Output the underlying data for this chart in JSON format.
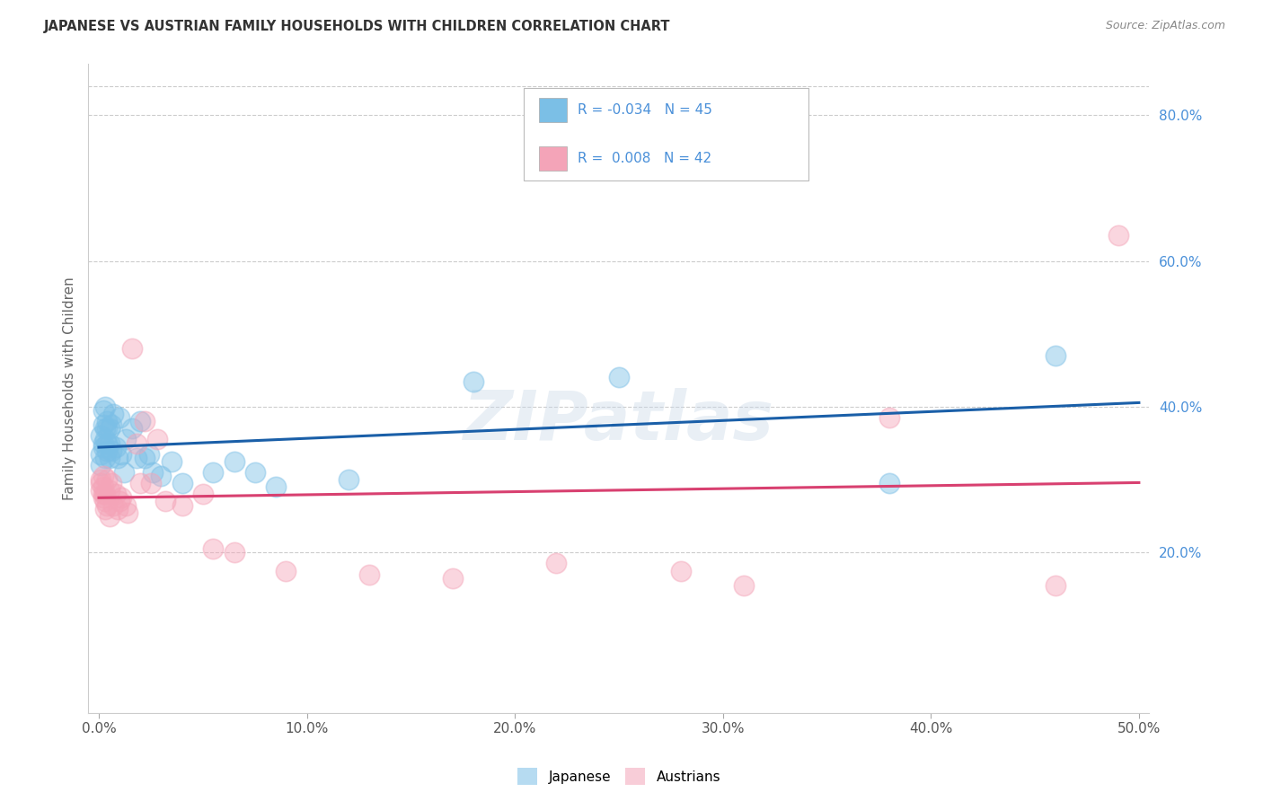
{
  "title": "JAPANESE VS AUSTRIAN FAMILY HOUSEHOLDS WITH CHILDREN CORRELATION CHART",
  "source": "Source: ZipAtlas.com",
  "ylabel": "Family Households with Children",
  "xlim": [
    -0.005,
    0.505
  ],
  "ylim": [
    -0.02,
    0.87
  ],
  "xticks": [
    0.0,
    0.1,
    0.2,
    0.3,
    0.4,
    0.5
  ],
  "yticks": [
    0.2,
    0.4,
    0.6,
    0.8
  ],
  "xtick_labels": [
    "0.0%",
    "10.0%",
    "20.0%",
    "30.0%",
    "40.0%",
    "50.0%"
  ],
  "ytick_labels": [
    "20.0%",
    "40.0%",
    "60.0%",
    "80.0%"
  ],
  "japanese_color": "#7bbfe6",
  "austrian_color": "#f4a4b8",
  "japanese_line_color": "#1a5fa8",
  "austrian_line_color": "#d84070",
  "watermark": "ZIPatlas",
  "japanese_x": [
    0.001,
    0.001,
    0.001,
    0.002,
    0.002,
    0.002,
    0.002,
    0.003,
    0.003,
    0.003,
    0.003,
    0.004,
    0.004,
    0.004,
    0.004,
    0.005,
    0.005,
    0.005,
    0.006,
    0.006,
    0.007,
    0.008,
    0.009,
    0.01,
    0.011,
    0.012,
    0.013,
    0.016,
    0.018,
    0.02,
    0.022,
    0.024,
    0.026,
    0.03,
    0.035,
    0.04,
    0.055,
    0.065,
    0.075,
    0.085,
    0.12,
    0.18,
    0.25,
    0.38,
    0.46
  ],
  "japanese_y": [
    0.335,
    0.36,
    0.32,
    0.345,
    0.375,
    0.395,
    0.35,
    0.37,
    0.4,
    0.355,
    0.33,
    0.38,
    0.35,
    0.37,
    0.34,
    0.35,
    0.33,
    0.37,
    0.375,
    0.34,
    0.39,
    0.345,
    0.33,
    0.385,
    0.335,
    0.31,
    0.355,
    0.37,
    0.33,
    0.38,
    0.33,
    0.335,
    0.31,
    0.305,
    0.325,
    0.295,
    0.31,
    0.325,
    0.31,
    0.29,
    0.3,
    0.435,
    0.44,
    0.295,
    0.47
  ],
  "austrian_x": [
    0.001,
    0.001,
    0.001,
    0.002,
    0.002,
    0.002,
    0.002,
    0.003,
    0.003,
    0.003,
    0.004,
    0.004,
    0.005,
    0.005,
    0.006,
    0.007,
    0.008,
    0.009,
    0.01,
    0.011,
    0.013,
    0.014,
    0.016,
    0.018,
    0.02,
    0.022,
    0.025,
    0.028,
    0.032,
    0.04,
    0.05,
    0.055,
    0.065,
    0.09,
    0.13,
    0.17,
    0.22,
    0.28,
    0.31,
    0.38,
    0.46,
    0.49
  ],
  "austrian_y": [
    0.3,
    0.285,
    0.295,
    0.29,
    0.28,
    0.305,
    0.275,
    0.28,
    0.26,
    0.27,
    0.3,
    0.265,
    0.285,
    0.25,
    0.295,
    0.265,
    0.28,
    0.26,
    0.27,
    0.275,
    0.265,
    0.255,
    0.48,
    0.35,
    0.295,
    0.38,
    0.295,
    0.355,
    0.27,
    0.265,
    0.28,
    0.205,
    0.2,
    0.175,
    0.17,
    0.165,
    0.185,
    0.175,
    0.155,
    0.385,
    0.155,
    0.635
  ]
}
